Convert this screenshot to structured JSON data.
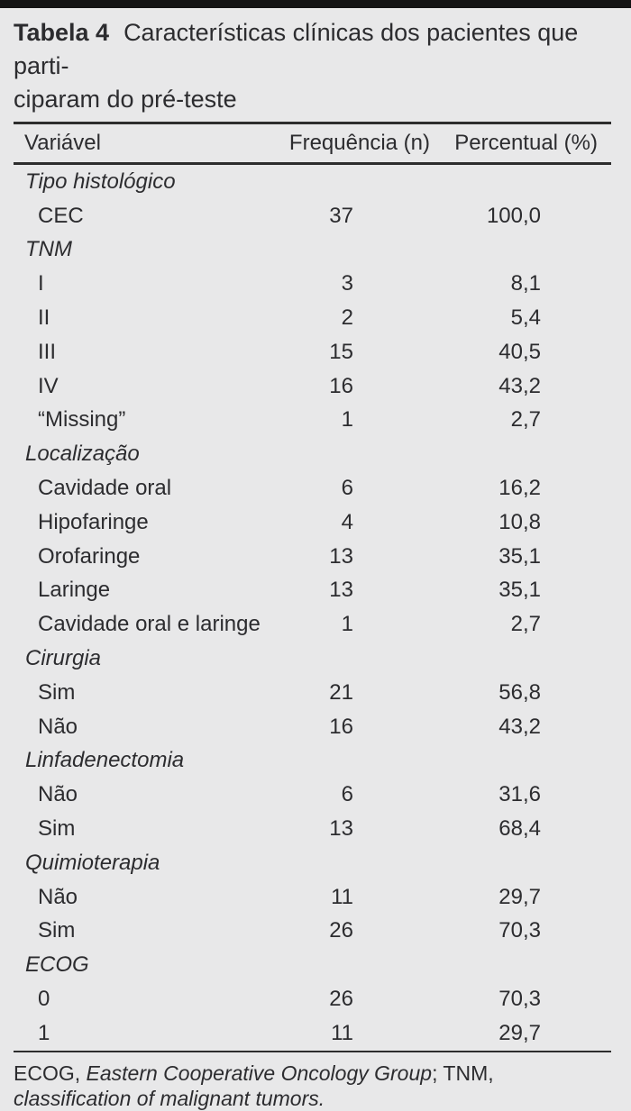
{
  "page": {
    "background_color": "#e8e8e9",
    "top_bar_color": "#141414",
    "text_color": "#2c2c2f",
    "rule_color": "#2d2d2d"
  },
  "title": {
    "bold": "Tabela 4",
    "line1": "Características clínicas dos pacientes que parti-",
    "line2": "ciparam do pré-teste"
  },
  "table": {
    "columns": [
      "Variável",
      "Frequência (n)",
      "Percentual (%)"
    ],
    "rows": [
      {
        "type": "section",
        "label": "Tipo histológico",
        "freq": "",
        "pct": ""
      },
      {
        "type": "item",
        "label": "CEC",
        "freq": "37",
        "pct": "100,0"
      },
      {
        "type": "section",
        "label": "TNM",
        "freq": "",
        "pct": ""
      },
      {
        "type": "item",
        "label": "I",
        "freq": "3",
        "pct": "8,1"
      },
      {
        "type": "item",
        "label": "II",
        "freq": "2",
        "pct": "5,4"
      },
      {
        "type": "item",
        "label": "III",
        "freq": "15",
        "pct": "40,5"
      },
      {
        "type": "item",
        "label": "IV",
        "freq": "16",
        "pct": "43,2"
      },
      {
        "type": "item",
        "label": "“Missing”",
        "freq": "1",
        "pct": "2,7"
      },
      {
        "type": "section",
        "label": "Localização",
        "freq": "",
        "pct": ""
      },
      {
        "type": "item",
        "label": "Cavidade oral",
        "freq": "6",
        "pct": "16,2"
      },
      {
        "type": "item",
        "label": "Hipofaringe",
        "freq": "4",
        "pct": "10,8"
      },
      {
        "type": "item",
        "label": "Orofaringe",
        "freq": "13",
        "pct": "35,1"
      },
      {
        "type": "item",
        "label": "Laringe",
        "freq": "13",
        "pct": "35,1"
      },
      {
        "type": "item",
        "label": "Cavidade oral e laringe",
        "freq": "1",
        "pct": "2,7"
      },
      {
        "type": "section",
        "label": "Cirurgia",
        "freq": "",
        "pct": ""
      },
      {
        "type": "item",
        "label": "Sim",
        "freq": "21",
        "pct": "56,8"
      },
      {
        "type": "item",
        "label": "Não",
        "freq": "16",
        "pct": "43,2"
      },
      {
        "type": "section",
        "label": "Linfadenectomia",
        "freq": "",
        "pct": ""
      },
      {
        "type": "item",
        "label": "Não",
        "freq": "6",
        "pct": "31,6"
      },
      {
        "type": "item",
        "label": "Sim",
        "freq": "13",
        "pct": "68,4"
      },
      {
        "type": "section",
        "label": "Quimioterapia",
        "freq": "",
        "pct": ""
      },
      {
        "type": "item",
        "label": "Não",
        "freq": "11",
        "pct": "29,7"
      },
      {
        "type": "item",
        "label": "Sim",
        "freq": "26",
        "pct": "70,3"
      },
      {
        "type": "section",
        "label": "ECOG",
        "freq": "",
        "pct": ""
      },
      {
        "type": "item",
        "label": "0",
        "freq": "26",
        "pct": "70,3"
      },
      {
        "type": "item",
        "label": "1",
        "freq": "11",
        "pct": "29,7"
      }
    ]
  },
  "footnote": {
    "segments": [
      {
        "text": "ECOG, ",
        "italic": false
      },
      {
        "text": "Eastern Cooperative Oncology Group",
        "italic": true
      },
      {
        "text": "; TNM, ",
        "italic": false
      },
      {
        "text": "classification of malignant tumors.",
        "italic": true
      }
    ]
  }
}
